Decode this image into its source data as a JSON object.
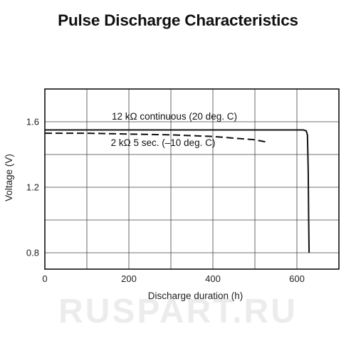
{
  "chart_data": {
    "type": "line",
    "title": "Pulse Discharge Characteristics",
    "xlabel": "Discharge duration (h)",
    "ylabel": "Voltage (V)",
    "xlim": [
      0,
      700
    ],
    "ylim": [
      0.7,
      1.8
    ],
    "xticks": [
      0,
      200,
      400,
      600
    ],
    "yticks": [
      0.8,
      1.2,
      1.6
    ],
    "xtick_labels": [
      "0",
      "200",
      "400",
      "600"
    ],
    "ytick_labels": [
      "0.8",
      "1.2",
      "1.6"
    ],
    "grid": true,
    "series": [
      {
        "name": "12 kΩ continuous (20 deg. C)",
        "style": "solid",
        "x": [
          0,
          100,
          200,
          300,
          400,
          500,
          600,
          615,
          622,
          625,
          627,
          628,
          629
        ],
        "y": [
          1.55,
          1.55,
          1.55,
          1.55,
          1.55,
          1.55,
          1.55,
          1.55,
          1.545,
          1.52,
          1.3,
          1.0,
          0.8
        ]
      },
      {
        "name": "2 kΩ 5 sec. (–10 deg. C)",
        "style": "dashed",
        "x": [
          0,
          100,
          200,
          300,
          400,
          450,
          500,
          530
        ],
        "y": [
          1.53,
          1.53,
          1.525,
          1.52,
          1.51,
          1.5,
          1.49,
          1.475
        ]
      }
    ]
  },
  "watermark": "RUSPART.RU"
}
